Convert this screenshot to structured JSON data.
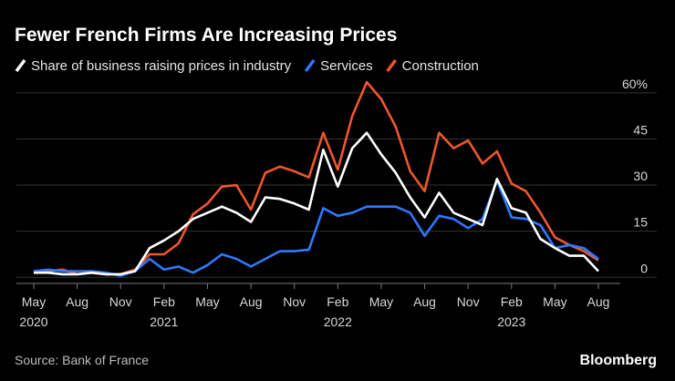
{
  "chart_data": {
    "type": "line",
    "title": "Fewer French Firms Are Increasing Prices",
    "source": "Source: Bank of France",
    "brand": "Bloomberg",
    "categories": [
      "May 2020",
      null,
      null,
      "Aug",
      null,
      null,
      "Nov",
      null,
      null,
      "Feb 2021",
      null,
      null,
      "May",
      null,
      null,
      "Aug",
      null,
      null,
      "Nov",
      null,
      null,
      "Feb 2022",
      null,
      null,
      "May",
      null,
      null,
      "Aug",
      null,
      null,
      "Nov",
      null,
      null,
      "Feb 2023",
      null,
      null,
      "May",
      null,
      null,
      "Aug"
    ],
    "series": [
      {
        "name": "Share of business raising prices in industry",
        "color": "#ffffff",
        "values": [
          1.5,
          1.5,
          1,
          1,
          1.5,
          1,
          1,
          2,
          9.5,
          12,
          15,
          19,
          21,
          23,
          21,
          18,
          26,
          25.5,
          24,
          22,
          41.5,
          29.5,
          42,
          47,
          40,
          34,
          26,
          19.5,
          27.5,
          21,
          19,
          17,
          32,
          22.5,
          21,
          12.5,
          9.5,
          7,
          7,
          2
        ]
      },
      {
        "name": "Services",
        "color": "#2f78ff",
        "values": [
          2,
          2.5,
          2,
          2,
          2,
          1.5,
          0.5,
          2,
          6,
          2.5,
          3.5,
          1.5,
          4,
          7.5,
          6,
          3.5,
          6,
          8.5,
          8.5,
          9,
          22.5,
          20,
          21,
          23,
          23,
          23,
          21,
          13.5,
          20,
          19,
          16,
          19,
          31.5,
          19.5,
          19,
          17,
          9.5,
          10.5,
          9.5,
          6
        ]
      },
      {
        "name": "Construction",
        "color": "#f0562e",
        "values": [
          2,
          2,
          2.5,
          1,
          1.5,
          1,
          1,
          2.5,
          7.5,
          7.5,
          11,
          20.5,
          24,
          29.5,
          30,
          22,
          34,
          36,
          34.5,
          32.5,
          47,
          35,
          52.5,
          63.5,
          58,
          49,
          34.5,
          28,
          47,
          42,
          44.5,
          37,
          41,
          30.5,
          28,
          21,
          13,
          10.5,
          8.5,
          5.5
        ]
      }
    ],
    "ylim": [
      -2,
      65
    ],
    "yticks": [
      0,
      15,
      30,
      45,
      {
        "value": 60,
        "label": "60%"
      }
    ],
    "grid": true
  }
}
